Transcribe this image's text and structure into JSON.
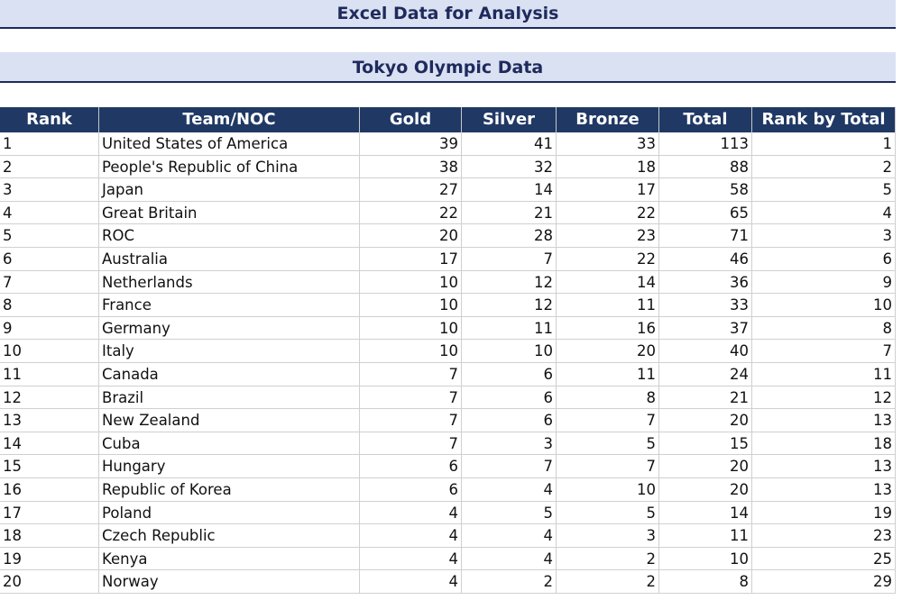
{
  "header": {
    "title": "Excel Data for Analysis",
    "subtitle": "Tokyo Olympic Data"
  },
  "table": {
    "columns": [
      "Rank",
      "Team/NOC",
      "Gold",
      "Silver",
      "Bronze",
      "Total",
      "Rank by Total"
    ],
    "rows": [
      [
        1,
        "United States of America",
        39,
        41,
        33,
        113,
        1
      ],
      [
        2,
        "People's Republic of China",
        38,
        32,
        18,
        88,
        2
      ],
      [
        3,
        "Japan",
        27,
        14,
        17,
        58,
        5
      ],
      [
        4,
        "Great Britain",
        22,
        21,
        22,
        65,
        4
      ],
      [
        5,
        "ROC",
        20,
        28,
        23,
        71,
        3
      ],
      [
        6,
        "Australia",
        17,
        7,
        22,
        46,
        6
      ],
      [
        7,
        "Netherlands",
        10,
        12,
        14,
        36,
        9
      ],
      [
        8,
        "France",
        10,
        12,
        11,
        33,
        10
      ],
      [
        9,
        "Germany",
        10,
        11,
        16,
        37,
        8
      ],
      [
        10,
        "Italy",
        10,
        10,
        20,
        40,
        7
      ],
      [
        11,
        "Canada",
        7,
        6,
        11,
        24,
        11
      ],
      [
        12,
        "Brazil",
        7,
        6,
        8,
        21,
        12
      ],
      [
        13,
        "New Zealand",
        7,
        6,
        7,
        20,
        13
      ],
      [
        14,
        "Cuba",
        7,
        3,
        5,
        15,
        18
      ],
      [
        15,
        "Hungary",
        6,
        7,
        7,
        20,
        13
      ],
      [
        16,
        "Republic of Korea",
        6,
        4,
        10,
        20,
        13
      ],
      [
        17,
        "Poland",
        4,
        5,
        5,
        14,
        19
      ],
      [
        18,
        "Czech Republic",
        4,
        4,
        3,
        11,
        23
      ],
      [
        19,
        "Kenya",
        4,
        4,
        2,
        10,
        25
      ],
      [
        20,
        "Norway",
        4,
        2,
        2,
        8,
        29
      ]
    ]
  }
}
